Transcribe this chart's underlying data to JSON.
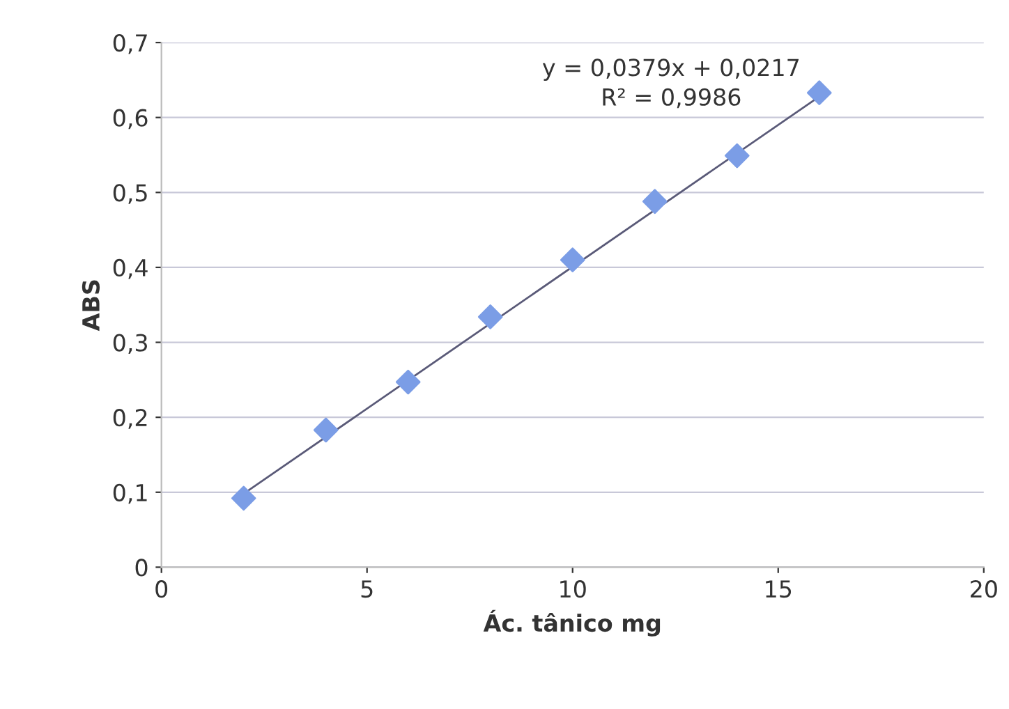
{
  "chart_data": {
    "type": "scatter",
    "xlabel": "Ác. tânico mg",
    "ylabel": "ABS",
    "xlim": [
      0,
      20
    ],
    "xticks": [
      0,
      5,
      10,
      15,
      20
    ],
    "ylim": [
      0,
      0.7
    ],
    "yticks": [
      0,
      {
        "value": 0.1,
        "label": "0,1"
      },
      {
        "value": 0.2,
        "label": "0,2"
      },
      {
        "value": 0.3,
        "label": "0,3"
      },
      {
        "value": 0.4,
        "label": "0,4"
      },
      {
        "value": 0.5,
        "label": "0,5"
      },
      {
        "value": 0.6,
        "label": "0,6"
      },
      {
        "value": 0.7,
        "label": "0,7"
      }
    ],
    "grid": "y",
    "marker": "diamond",
    "series": [
      {
        "color": "#7b9de6",
        "x": [
          2,
          4,
          6,
          8,
          10,
          12,
          14,
          16
        ],
        "values": [
          0.092,
          0.183,
          0.247,
          0.334,
          0.41,
          0.488,
          0.549,
          0.633
        ]
      },
      {
        "type": "line",
        "color": "#5a5a78",
        "x": [
          2,
          16
        ],
        "values": [
          0.098,
          0.628
        ],
        "marker": "none",
        "line_style": "solid"
      }
    ],
    "annotations": [
      "y = 0,0379x + 0,0217\nR² = 0,9986"
    ]
  }
}
